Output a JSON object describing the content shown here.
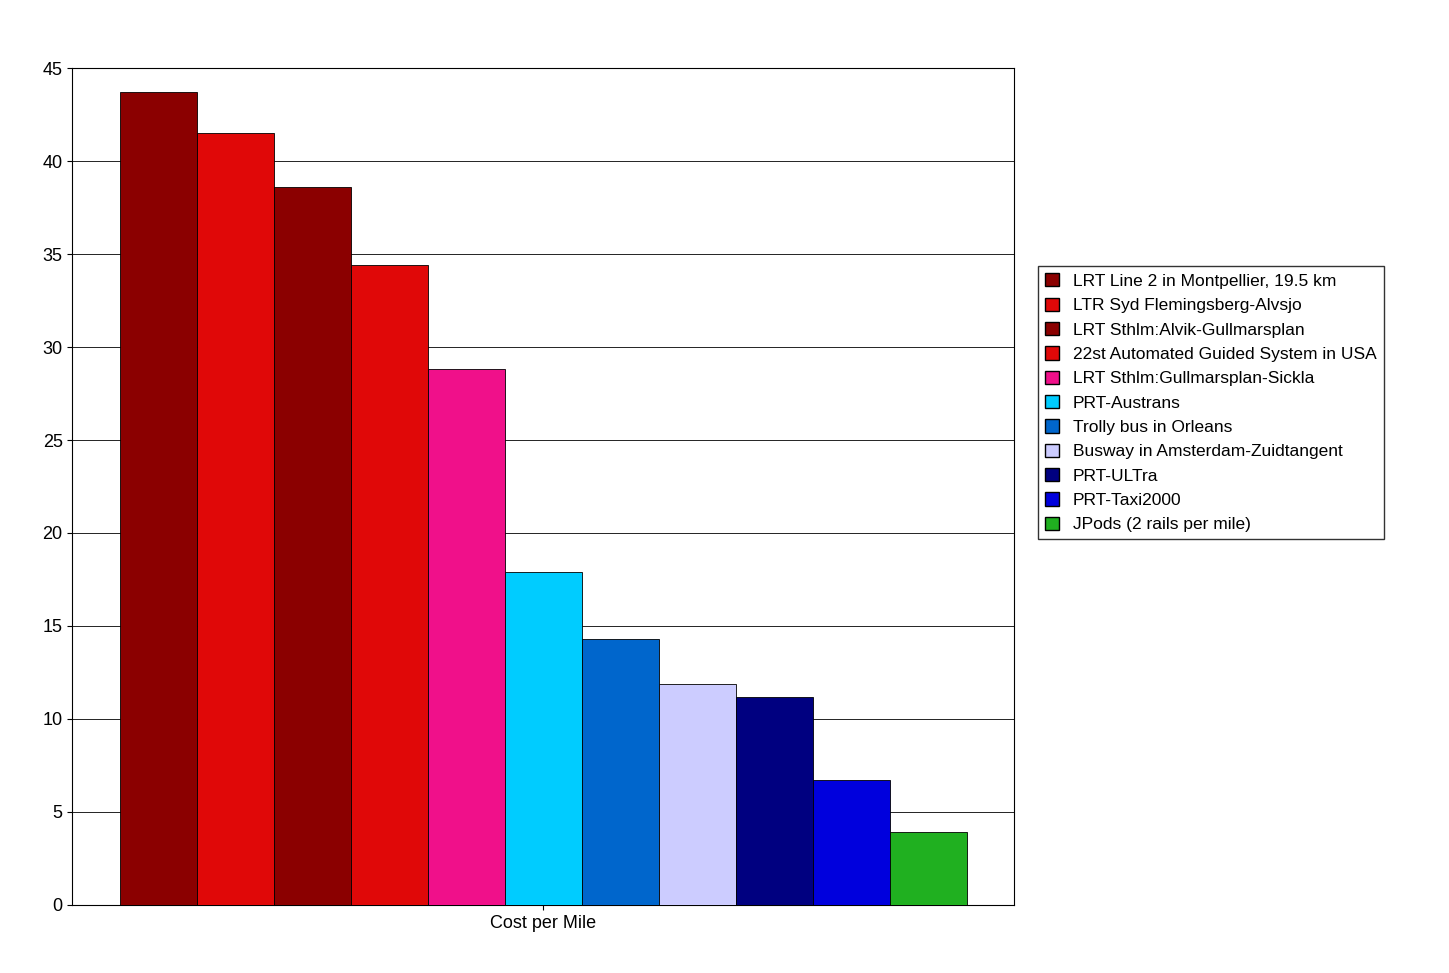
{
  "chart_data": {
    "type": "bar",
    "categories": [
      "Cost per Mile"
    ],
    "series": [
      {
        "name": "LRT Line 2 in Montpellier, 19.5 km",
        "color": "#8b0000",
        "values": [
          43.7
        ]
      },
      {
        "name": "LTR Syd Flemingsberg-Alvsjo",
        "color": "#e00808",
        "values": [
          41.5
        ]
      },
      {
        "name": "LRT Sthlm:Alvik-Gullmarsplan",
        "color": "#8b0000",
        "values": [
          38.6
        ]
      },
      {
        "name": "22st Automated Guided System in USA",
        "color": "#e00808",
        "values": [
          34.4
        ]
      },
      {
        "name": "LRT Sthlm:Gullmarsplan-Sickla",
        "color": "#f0108a",
        "values": [
          28.8
        ]
      },
      {
        "name": "PRT-Austrans",
        "color": "#00ccff",
        "values": [
          17.9
        ]
      },
      {
        "name": "Trolly bus in Orleans",
        "color": "#0066cc",
        "values": [
          14.3
        ]
      },
      {
        "name": "Busway in Amsterdam-Zuidtangent",
        "color": "#ccccff",
        "values": [
          11.9
        ]
      },
      {
        "name": "PRT-ULTra",
        "color": "#000080",
        "values": [
          11.2
        ]
      },
      {
        "name": "PRT-Taxi2000",
        "color": "#0000dd",
        "values": [
          6.7
        ]
      },
      {
        "name": "JPods (2 rails per mile)",
        "color": "#20b020",
        "values": [
          3.9
        ]
      }
    ],
    "ylim": [
      0,
      45
    ],
    "yticks": [
      0,
      5,
      10,
      15,
      20,
      25,
      30,
      35,
      40,
      45
    ],
    "grid": true,
    "legend": "right"
  }
}
